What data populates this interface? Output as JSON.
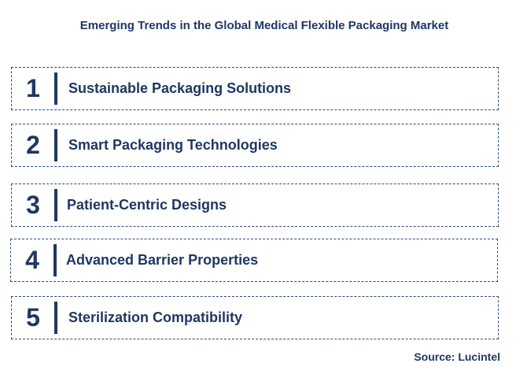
{
  "title": "Emerging Trends in the Global Medical Flexible Packaging Market",
  "trends": [
    {
      "number": "1",
      "label": "Sustainable Packaging Solutions"
    },
    {
      "number": "2",
      "label": "Smart Packaging Technologies"
    },
    {
      "number": "3",
      "label": "Patient-Centric Designs"
    },
    {
      "number": "4",
      "label": "Advanced Barrier Properties"
    },
    {
      "number": "5",
      "label": "Sterilization Compatibility"
    }
  ],
  "source": "Source: Lucintel"
}
